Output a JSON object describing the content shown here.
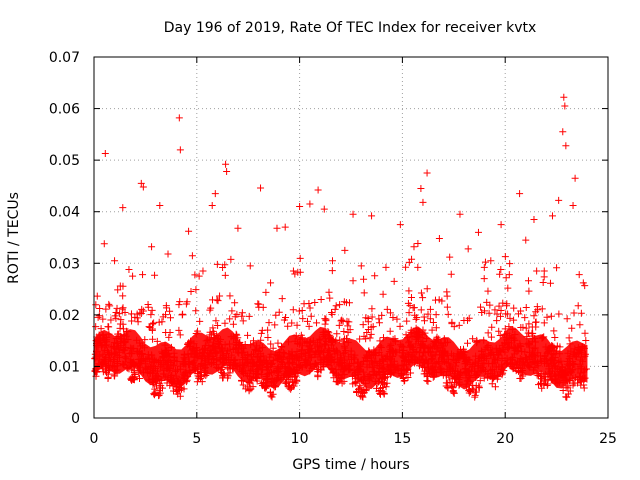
{
  "chart_data": {
    "type": "scatter",
    "title": "Day 196 of 2019, Rate Of TEC Index for receiver kvtx",
    "xlabel": "GPS time / hours",
    "ylabel": "ROTI / TECUs",
    "xlim": [
      0,
      25
    ],
    "ylim": [
      0,
      0.07
    ],
    "xticks": [
      0,
      5,
      10,
      15,
      20,
      25
    ],
    "xtick_labels": [
      "0",
      "5",
      "10",
      "15",
      "20",
      "25"
    ],
    "yticks": [
      0,
      0.01,
      0.02,
      0.03,
      0.04,
      0.05,
      0.06,
      0.07
    ],
    "ytick_labels": [
      "0",
      "0.01",
      "0.02",
      "0.03",
      "0.04",
      "0.05",
      "0.06",
      "0.07"
    ],
    "grid": true,
    "marker": "+",
    "color": "#ff0000",
    "series": [
      {
        "name": "ROTI",
        "points": [
          [
            0.55,
            0.0513
          ],
          [
            4.15,
            0.0582
          ],
          [
            4.2,
            0.052
          ],
          [
            6.4,
            0.0492
          ],
          [
            6.45,
            0.0478
          ],
          [
            8.1,
            0.0446
          ],
          [
            10.9,
            0.0442
          ],
          [
            16.2,
            0.0475
          ],
          [
            15.9,
            0.0445
          ],
          [
            22.85,
            0.0622
          ],
          [
            22.9,
            0.0605
          ],
          [
            22.8,
            0.0555
          ],
          [
            22.95,
            0.0528
          ],
          [
            23.4,
            0.0465
          ],
          [
            20.7,
            0.0435
          ],
          [
            2.3,
            0.0455
          ],
          [
            2.4,
            0.0448
          ],
          [
            1.4,
            0.0408
          ],
          [
            3.2,
            0.0412
          ],
          [
            5.75,
            0.0412
          ],
          [
            5.9,
            0.0435
          ],
          [
            7.0,
            0.0368
          ],
          [
            8.9,
            0.0368
          ],
          [
            9.3,
            0.037
          ],
          [
            10.0,
            0.041
          ],
          [
            10.5,
            0.0415
          ],
          [
            11.2,
            0.0405
          ],
          [
            12.6,
            0.0395
          ],
          [
            13.5,
            0.0392
          ],
          [
            14.9,
            0.0375
          ],
          [
            16.0,
            0.0418
          ],
          [
            17.8,
            0.0395
          ],
          [
            18.7,
            0.036
          ],
          [
            19.8,
            0.0375
          ],
          [
            21.4,
            0.0385
          ],
          [
            22.3,
            0.0392
          ],
          [
            22.6,
            0.0422
          ],
          [
            23.3,
            0.0412
          ],
          [
            0.2,
            0.0195
          ],
          [
            0.5,
            0.0338
          ],
          [
            1.0,
            0.0305
          ],
          [
            1.7,
            0.0288
          ],
          [
            2.8,
            0.0332
          ],
          [
            3.6,
            0.0318
          ],
          [
            4.6,
            0.0362
          ],
          [
            5.3,
            0.0285
          ],
          [
            6.0,
            0.0298
          ],
          [
            7.6,
            0.0295
          ],
          [
            9.7,
            0.0285
          ],
          [
            11.6,
            0.0305
          ],
          [
            12.2,
            0.0325
          ],
          [
            13.0,
            0.0295
          ],
          [
            14.2,
            0.0292
          ],
          [
            14.6,
            0.0265
          ],
          [
            16.8,
            0.0348
          ],
          [
            17.3,
            0.0312
          ],
          [
            18.2,
            0.0328
          ],
          [
            19.3,
            0.0305
          ],
          [
            20.2,
            0.0278
          ],
          [
            21.0,
            0.0345
          ],
          [
            21.9,
            0.0285
          ],
          [
            23.6,
            0.0278
          ],
          [
            23.8,
            0.0262
          ],
          [
            0.05,
            0.0115
          ],
          [
            23.95,
            0.0095
          ]
        ]
      }
    ]
  }
}
